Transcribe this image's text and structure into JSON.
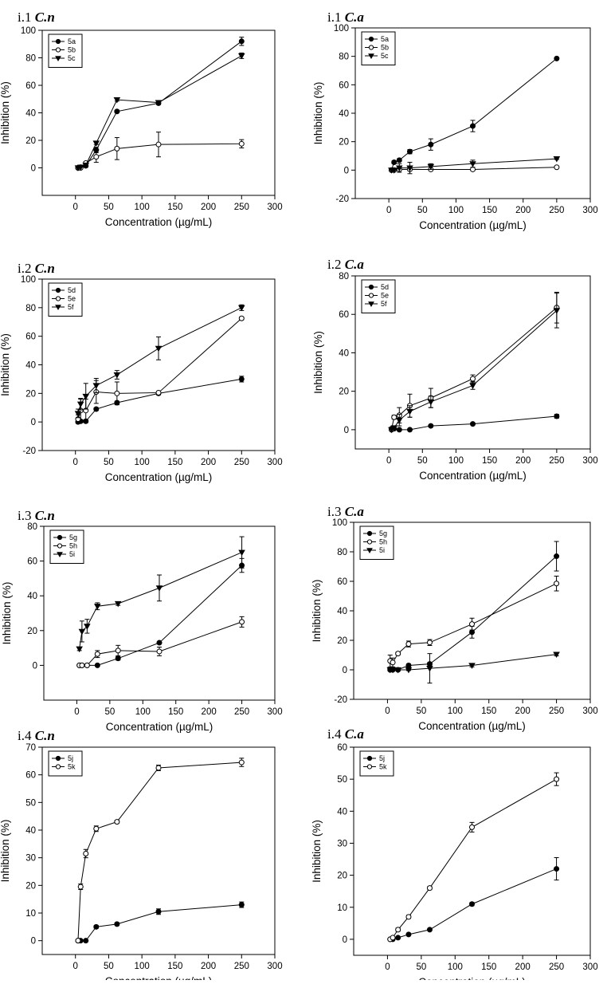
{
  "chart_data": [
    {
      "type": "line",
      "panel_label": "i.1",
      "organism": "C.n",
      "xlabel": "Concentration (µg/mL)",
      "ylabel": "Inhibition (%)",
      "xlim": [
        -50,
        300
      ],
      "ylim": [
        -20,
        100
      ],
      "xticks": [
        0,
        50,
        100,
        150,
        200,
        250,
        300
      ],
      "yticks": [
        0,
        20,
        40,
        60,
        80,
        100
      ],
      "legend_position": "top-left",
      "series": [
        {
          "name": "5a",
          "marker": "filled-circle",
          "x": [
            3.9,
            7.8,
            15.6,
            31.25,
            62.5,
            125,
            250
          ],
          "y": [
            0,
            0.5,
            1.5,
            13,
            41,
            47,
            92
          ],
          "err": [
            0,
            0,
            1,
            2,
            1,
            1,
            3
          ]
        },
        {
          "name": "5b",
          "marker": "open-circle",
          "x": [
            3.9,
            7.8,
            15.6,
            31.25,
            62.5,
            125,
            250
          ],
          "y": [
            0,
            0,
            3.5,
            8,
            14,
            17,
            17.5
          ],
          "err": [
            0,
            0,
            1,
            4,
            8,
            9,
            3
          ]
        },
        {
          "name": "5c",
          "marker": "filled-triangle-down",
          "x": [
            3.9,
            7.8,
            15.6,
            31.25,
            62.5,
            125,
            250
          ],
          "y": [
            0,
            0.5,
            2,
            18,
            49.5,
            47.5,
            81.5
          ],
          "err": [
            0,
            0,
            1,
            1,
            1,
            1,
            2
          ]
        }
      ]
    },
    {
      "type": "line",
      "panel_label": "i.1",
      "organism": "C.a",
      "xlabel": "Concentration (µg/mL)",
      "ylabel": "Inhibition (%)",
      "xlim": [
        -50,
        300
      ],
      "ylim": [
        -20,
        100
      ],
      "xticks": [
        0,
        50,
        100,
        150,
        200,
        250,
        300
      ],
      "yticks": [
        -20,
        0,
        20,
        40,
        60,
        80,
        100
      ],
      "legend_position": "top-left",
      "series": [
        {
          "name": "5a",
          "marker": "filled-circle",
          "x": [
            3.9,
            7.8,
            15.6,
            31.25,
            62.5,
            125,
            250
          ],
          "y": [
            0,
            5.5,
            7,
            13,
            18,
            31,
            78.5
          ],
          "err": [
            0,
            1,
            1,
            1.5,
            4,
            4,
            0.5
          ]
        },
        {
          "name": "5b",
          "marker": "open-circle",
          "x": [
            3.9,
            7.8,
            15.6,
            31.25,
            62.5,
            125,
            250
          ],
          "y": [
            0,
            0,
            0.5,
            0.5,
            0.5,
            0.5,
            2
          ],
          "err": [
            0,
            0,
            0.5,
            0.5,
            0.5,
            0.5,
            0.5
          ]
        },
        {
          "name": "5c",
          "marker": "filled-triangle-down",
          "x": [
            3.9,
            7.8,
            15.6,
            31.25,
            62.5,
            125,
            250
          ],
          "y": [
            0,
            0,
            1.5,
            1.5,
            2.5,
            4.5,
            8
          ],
          "err": [
            0,
            0,
            3,
            4,
            2,
            2.5,
            0.5
          ]
        }
      ]
    },
    {
      "type": "line",
      "panel_label": "i.2",
      "organism": "C.n",
      "xlabel": "Concentration (µg/mL)",
      "ylabel": "Inhibition (%)",
      "xlim": [
        -50,
        300
      ],
      "ylim": [
        -20,
        100
      ],
      "xticks": [
        0,
        50,
        100,
        150,
        200,
        250,
        300
      ],
      "yticks": [
        -20,
        0,
        20,
        40,
        60,
        80,
        100
      ],
      "legend_position": "top-left",
      "series": [
        {
          "name": "5d",
          "marker": "filled-circle",
          "x": [
            3.9,
            7.8,
            15.6,
            31.25,
            62.5,
            125,
            250
          ],
          "y": [
            0,
            0.5,
            0.5,
            9,
            13.5,
            20,
            30
          ],
          "err": [
            1,
            1,
            1,
            1,
            1,
            1,
            2
          ]
        },
        {
          "name": "5e",
          "marker": "open-circle",
          "x": [
            3.9,
            7.8,
            15.6,
            31.25,
            62.5,
            125,
            250
          ],
          "y": [
            2,
            8,
            8,
            21,
            20,
            20.5,
            72.5
          ],
          "err": [
            3,
            8,
            8,
            8,
            8,
            1,
            1
          ]
        },
        {
          "name": "5f",
          "marker": "filled-triangle-down",
          "x": [
            3.9,
            7.8,
            15.6,
            31.25,
            62.5,
            125,
            250
          ],
          "y": [
            6,
            12.5,
            18,
            25.5,
            33,
            51.5,
            80
          ],
          "err": [
            3,
            4,
            9,
            5,
            3,
            8,
            2
          ]
        }
      ]
    },
    {
      "type": "line",
      "panel_label": "i.2",
      "organism": "C.a",
      "xlabel": "Concentration (µg/mL)",
      "ylabel": "Inhibition (%)",
      "xlim": [
        -50,
        300
      ],
      "ylim": [
        -10,
        80
      ],
      "xticks": [
        0,
        50,
        100,
        150,
        200,
        250,
        300
      ],
      "yticks": [
        0,
        20,
        40,
        60,
        80
      ],
      "legend_position": "top-left",
      "series": [
        {
          "name": "5d",
          "marker": "filled-circle",
          "x": [
            3.9,
            7.8,
            15.6,
            31.25,
            62.5,
            125,
            250
          ],
          "y": [
            0.5,
            0.5,
            0,
            0,
            2,
            3,
            7
          ],
          "err": [
            0.5,
            0.5,
            0.5,
            0.5,
            0.5,
            0.5,
            1
          ]
        },
        {
          "name": "5e",
          "marker": "open-circle",
          "x": [
            3.9,
            7.8,
            15.6,
            31.25,
            62.5,
            125,
            250
          ],
          "y": [
            0,
            6.5,
            7.5,
            12.5,
            16.5,
            26.5,
            63.5
          ],
          "err": [
            0,
            1,
            4,
            6,
            5,
            2,
            8
          ]
        },
        {
          "name": "5f",
          "marker": "filled-triangle-down",
          "x": [
            3.9,
            7.8,
            15.6,
            31.25,
            62.5,
            125,
            250
          ],
          "y": [
            0,
            1,
            5,
            9.5,
            14.5,
            23,
            62
          ],
          "err": [
            0,
            1,
            3,
            3,
            3,
            2,
            9
          ]
        }
      ]
    },
    {
      "type": "line",
      "panel_label": "i.3",
      "organism": "C.n",
      "xlabel": "Concentration (µg/mL)",
      "ylabel": "Inhibition (%)",
      "xlim": [
        -50,
        300
      ],
      "ylim": [
        -20,
        80
      ],
      "xticks": [
        0,
        50,
        100,
        150,
        200,
        250,
        300
      ],
      "yticks": [
        0,
        20,
        40,
        60,
        80
      ],
      "legend_position": "top-left",
      "series": [
        {
          "name": "5g",
          "marker": "filled-circle",
          "x": [
            3.9,
            7.8,
            15.6,
            31.25,
            62.5,
            125,
            250
          ],
          "y": [
            0,
            0,
            0,
            0,
            4,
            13,
            57.5
          ],
          "err": [
            0,
            0,
            0,
            0.5,
            1,
            0.5,
            4
          ]
        },
        {
          "name": "5h",
          "marker": "open-circle",
          "x": [
            3.9,
            7.8,
            15.6,
            31.25,
            62.5,
            125,
            250
          ],
          "y": [
            0,
            0,
            0,
            6.5,
            8.5,
            8,
            25
          ],
          "err": [
            0,
            0,
            0,
            2,
            3,
            2.5,
            3
          ]
        },
        {
          "name": "5i",
          "marker": "filled-triangle-down",
          "x": [
            3.9,
            7.8,
            15.6,
            31.25,
            62.5,
            125,
            250
          ],
          "y": [
            9.5,
            19.5,
            22.5,
            34,
            35.5,
            44.5,
            65
          ],
          "err": [
            1,
            6,
            4,
            2,
            1,
            7.5,
            9
          ]
        }
      ]
    },
    {
      "type": "line",
      "panel_label": "i.3",
      "organism": "C.a",
      "xlabel": "Concentration (µg/mL)",
      "ylabel": "Inhibition (%)",
      "xlim": [
        -50,
        300
      ],
      "ylim": [
        -20,
        100
      ],
      "xticks": [
        0,
        50,
        100,
        150,
        200,
        250,
        300
      ],
      "yticks": [
        -20,
        0,
        20,
        40,
        60,
        80,
        100
      ],
      "legend_position": "top-left",
      "series": [
        {
          "name": "5g",
          "marker": "filled-circle",
          "x": [
            3.9,
            7.8,
            15.6,
            31.25,
            62.5,
            125,
            250
          ],
          "y": [
            0,
            0,
            0,
            3,
            4,
            25.5,
            77
          ],
          "err": [
            0,
            0,
            0,
            1,
            1,
            4,
            10
          ]
        },
        {
          "name": "5h",
          "marker": "open-circle",
          "x": [
            3.9,
            7.8,
            15.6,
            31.25,
            62.5,
            125,
            250
          ],
          "y": [
            6,
            5,
            11,
            17.5,
            18.5,
            31,
            58.5
          ],
          "err": [
            4,
            3,
            1,
            2,
            2,
            4,
            5
          ]
        },
        {
          "name": "5i",
          "marker": "filled-triangle-down",
          "x": [
            3.9,
            7.8,
            15.6,
            31.25,
            62.5,
            125,
            250
          ],
          "y": [
            0,
            0,
            0,
            0,
            1,
            3,
            10.5
          ],
          "err": [
            0,
            0,
            0,
            0.5,
            10,
            1,
            1
          ]
        }
      ]
    },
    {
      "type": "line",
      "panel_label": "i.4",
      "organism": "C.n",
      "xlabel": "Concentration (µg/mL)",
      "ylabel": "Inhibition (%)",
      "xlim": [
        -50,
        300
      ],
      "ylim": [
        -5,
        70
      ],
      "xticks": [
        0,
        50,
        100,
        150,
        200,
        250,
        300
      ],
      "yticks": [
        0,
        10,
        20,
        30,
        40,
        50,
        60,
        70
      ],
      "legend_position": "top-left",
      "series": [
        {
          "name": "5j",
          "marker": "filled-circle",
          "x": [
            3.9,
            7.8,
            15.6,
            31.25,
            62.5,
            125,
            250
          ],
          "y": [
            0,
            0,
            0,
            5,
            6,
            10.5,
            13
          ],
          "err": [
            0,
            0,
            0,
            0.5,
            0.5,
            1,
            1
          ]
        },
        {
          "name": "5k",
          "marker": "open-circle",
          "x": [
            3.9,
            7.8,
            15.6,
            31.25,
            62.5,
            125,
            250
          ],
          "y": [
            0,
            19.5,
            31.5,
            40.5,
            43,
            62.5,
            64.5
          ],
          "err": [
            0,
            1,
            1.5,
            1,
            0.5,
            1,
            1.5
          ]
        }
      ]
    },
    {
      "type": "line",
      "panel_label": "i.4",
      "organism": "C.a",
      "xlabel": "Concentration (µg/mL)",
      "ylabel": "Inhibition (%)",
      "xlim": [
        -50,
        300
      ],
      "ylim": [
        -5,
        60
      ],
      "xticks": [
        0,
        50,
        100,
        150,
        200,
        250,
        300
      ],
      "yticks": [
        0,
        10,
        20,
        30,
        40,
        50,
        60
      ],
      "legend_position": "top-left",
      "series": [
        {
          "name": "5j",
          "marker": "filled-circle",
          "x": [
            3.9,
            7.8,
            15.6,
            31.25,
            62.5,
            125,
            250
          ],
          "y": [
            0,
            0,
            0.5,
            1.5,
            3,
            11,
            22
          ],
          "err": [
            0,
            0,
            0,
            0,
            0,
            0.5,
            3.5
          ]
        },
        {
          "name": "5k",
          "marker": "open-circle",
          "x": [
            3.9,
            7.8,
            15.6,
            31.25,
            62.5,
            125,
            250
          ],
          "y": [
            0,
            0.5,
            3,
            7,
            16,
            35,
            50
          ],
          "err": [
            0,
            0,
            0.5,
            0.5,
            0.5,
            1.5,
            2
          ]
        }
      ]
    }
  ]
}
